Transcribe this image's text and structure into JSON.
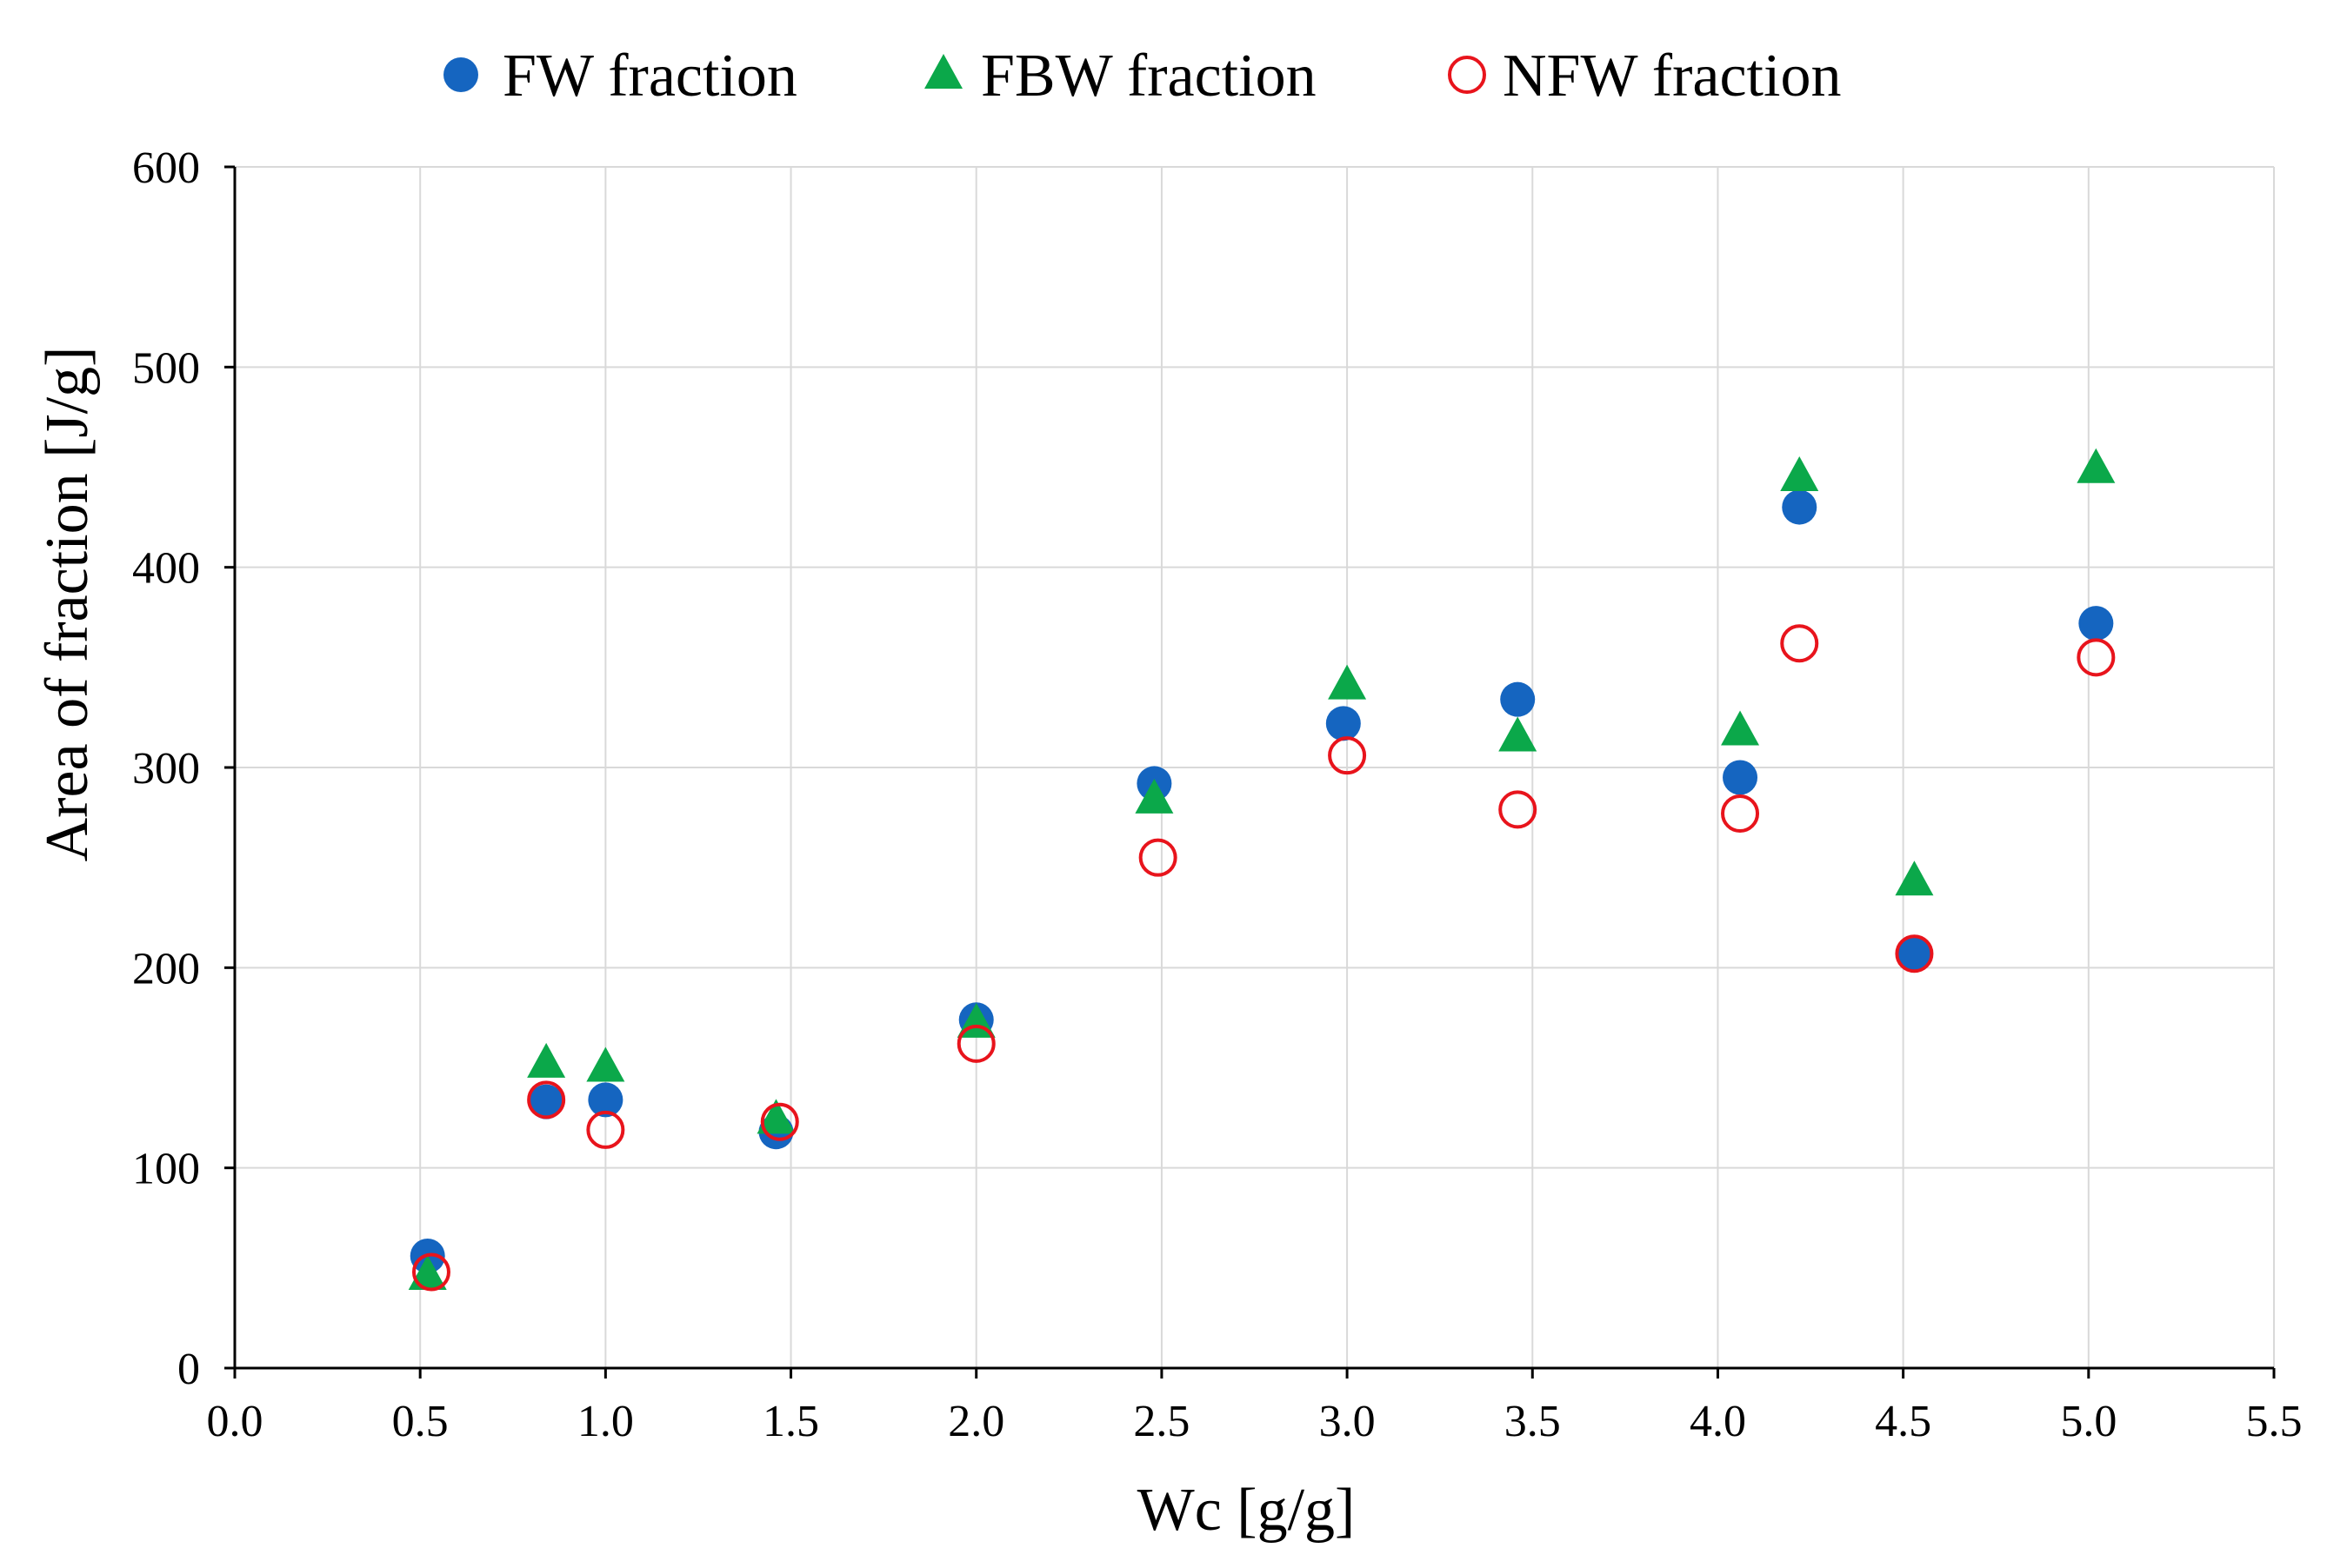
{
  "chart_data": {
    "type": "scatter",
    "title": "",
    "xlabel": "Wc [g/g]",
    "ylabel": "Area of fraction [J/g]",
    "xlim": [
      0.0,
      5.5
    ],
    "ylim": [
      0,
      600
    ],
    "x_ticks": [
      "0.0",
      "0.5",
      "1.0",
      "1.5",
      "2.0",
      "2.5",
      "3.0",
      "3.5",
      "4.0",
      "4.5",
      "5.0",
      "5.5"
    ],
    "y_ticks": [
      "0",
      "100",
      "200",
      "300",
      "400",
      "500",
      "600"
    ],
    "grid": true,
    "legend_position": "top",
    "series": [
      {
        "name": "FW fraction",
        "marker": "filled-circle",
        "color": "#1565C0",
        "points": [
          {
            "x": 0.52,
            "y": 56
          },
          {
            "x": 0.84,
            "y": 133
          },
          {
            "x": 1.0,
            "y": 134
          },
          {
            "x": 1.46,
            "y": 118
          },
          {
            "x": 2.0,
            "y": 174
          },
          {
            "x": 2.48,
            "y": 292
          },
          {
            "x": 2.99,
            "y": 322
          },
          {
            "x": 3.46,
            "y": 334
          },
          {
            "x": 4.06,
            "y": 295
          },
          {
            "x": 4.22,
            "y": 430
          },
          {
            "x": 4.53,
            "y": 207
          },
          {
            "x": 5.02,
            "y": 372
          }
        ]
      },
      {
        "name": "FBW fraction",
        "marker": "filled-triangle",
        "color": "#0BA84A",
        "points": [
          {
            "x": 0.52,
            "y": 46
          },
          {
            "x": 0.84,
            "y": 152
          },
          {
            "x": 1.0,
            "y": 150
          },
          {
            "x": 1.46,
            "y": 124
          },
          {
            "x": 2.0,
            "y": 172
          },
          {
            "x": 2.48,
            "y": 284
          },
          {
            "x": 3.0,
            "y": 341
          },
          {
            "x": 3.46,
            "y": 315
          },
          {
            "x": 4.06,
            "y": 318
          },
          {
            "x": 4.22,
            "y": 445
          },
          {
            "x": 4.53,
            "y": 243
          },
          {
            "x": 5.02,
            "y": 449
          }
        ]
      },
      {
        "name": "NFW fraction",
        "marker": "open-circle",
        "color": "#E8141C",
        "points": [
          {
            "x": 0.53,
            "y": 48
          },
          {
            "x": 0.84,
            "y": 134
          },
          {
            "x": 1.0,
            "y": 119
          },
          {
            "x": 1.47,
            "y": 123
          },
          {
            "x": 2.0,
            "y": 162
          },
          {
            "x": 2.49,
            "y": 255
          },
          {
            "x": 3.0,
            "y": 306
          },
          {
            "x": 3.46,
            "y": 279
          },
          {
            "x": 4.06,
            "y": 277
          },
          {
            "x": 4.22,
            "y": 362
          },
          {
            "x": 4.53,
            "y": 207
          },
          {
            "x": 5.02,
            "y": 355
          }
        ]
      }
    ]
  }
}
